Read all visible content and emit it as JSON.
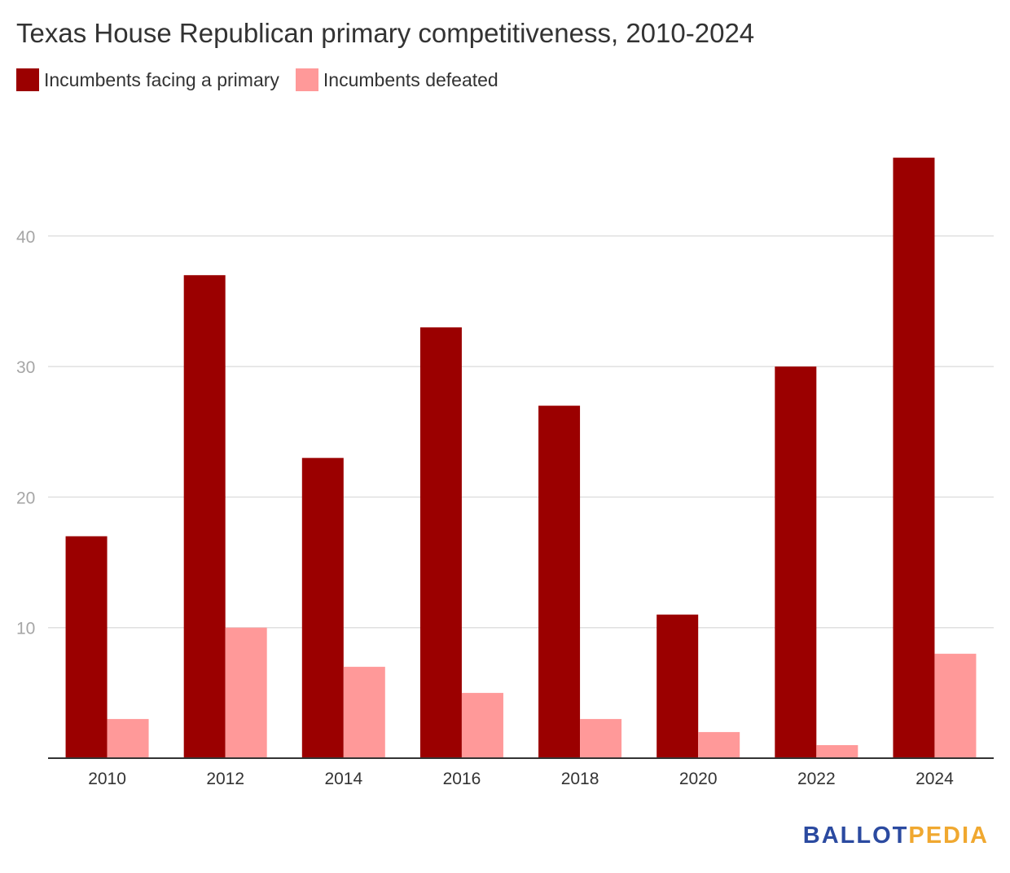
{
  "chart_data": {
    "type": "bar",
    "title": "Texas House Republican primary competitiveness, 2010-2024",
    "categories": [
      "2010",
      "2012",
      "2014",
      "2016",
      "2018",
      "2020",
      "2022",
      "2024"
    ],
    "series": [
      {
        "name": "Incumbents facing a primary",
        "color": "#9b0000",
        "values": [
          17,
          37,
          23,
          33,
          27,
          11,
          30,
          46
        ]
      },
      {
        "name": "Incumbents defeated",
        "color": "#ff9999",
        "values": [
          3,
          10,
          7,
          5,
          3,
          2,
          1,
          8
        ]
      }
    ],
    "ylim": [
      0,
      50
    ],
    "yticks": [
      10,
      20,
      30,
      40
    ],
    "grid": true,
    "legend": "top-left"
  },
  "logo": {
    "part1": "BALLOT",
    "part2": "PEDIA"
  }
}
